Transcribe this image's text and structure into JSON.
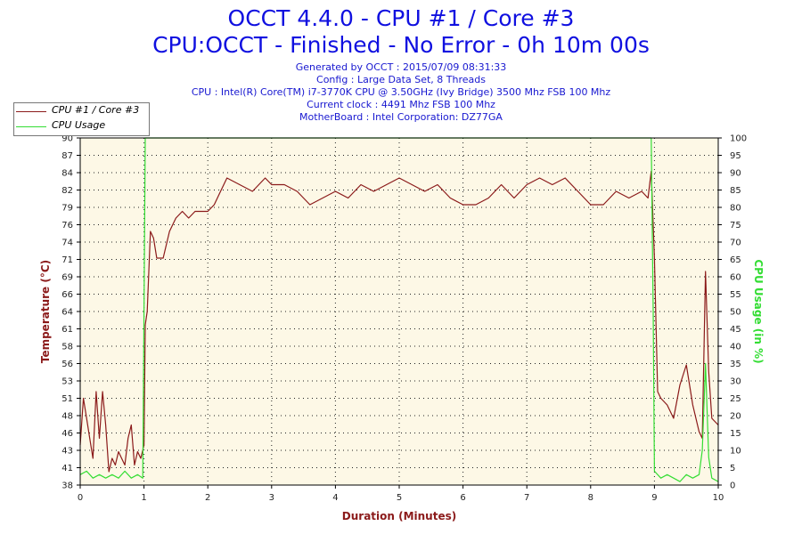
{
  "header": {
    "title_line1": "OCCT 4.4.0 - CPU #1 / Core #3",
    "title_line2": "CPU:OCCT - Finished - No Error - 0h 10m 00s",
    "info_lines": [
      "Generated by OCCT : 2015/07/09 08:31:33",
      "Config : Large Data Set, 8 Threads",
      "CPU : Intel(R) Core(TM) i7-3770K CPU @ 3.50GHz (Ivy Bridge) 3500 Mhz FSB 100 Mhz",
      "Current clock : 4491 Mhz FSB 100 Mhz",
      "MotherBoard : Intel Corporation: DZ77GA"
    ]
  },
  "colors": {
    "temperature": "#8b1a1a",
    "usage": "#33dd33",
    "title": "#1010e0",
    "plot_bg": "#fdf8e6"
  },
  "chart_data": {
    "type": "line",
    "title": "OCCT 4.4.0 - CPU #1 / Core #3",
    "xlabel": "Duration (Minutes)",
    "ylabel": "Temperature (°C)",
    "y2label": "CPU Usage (in %)",
    "xlim": [
      0,
      10
    ],
    "ylim": [
      38,
      90
    ],
    "y2lim": [
      0,
      100
    ],
    "x_ticks": [
      "0",
      "1",
      "2",
      "3",
      "4",
      "5",
      "6",
      "7",
      "8",
      "9",
      "10"
    ],
    "y_ticks": [
      "38",
      "41",
      "43",
      "46",
      "48",
      "51",
      "53",
      "56",
      "58",
      "61",
      "64",
      "66",
      "69",
      "71",
      "74",
      "76",
      "79",
      "82",
      "84",
      "87",
      "90"
    ],
    "y2_ticks": [
      "0",
      "5",
      "10",
      "15",
      "20",
      "25",
      "30",
      "35",
      "40",
      "45",
      "50",
      "55",
      "60",
      "65",
      "70",
      "75",
      "80",
      "85",
      "90",
      "95",
      "100"
    ],
    "grid": true,
    "legend": "top-left",
    "series": [
      {
        "name": "CPU #1 / Core #3",
        "axis": "left",
        "x": [
          0,
          0.05,
          0.1,
          0.15,
          0.2,
          0.25,
          0.3,
          0.35,
          0.4,
          0.45,
          0.5,
          0.55,
          0.6,
          0.65,
          0.7,
          0.75,
          0.8,
          0.85,
          0.9,
          0.95,
          1.0,
          1.02,
          1.05,
          1.1,
          1.15,
          1.2,
          1.3,
          1.4,
          1.5,
          1.6,
          1.7,
          1.8,
          1.9,
          2.0,
          2.1,
          2.2,
          2.3,
          2.5,
          2.7,
          2.9,
          3.0,
          3.2,
          3.4,
          3.6,
          3.8,
          4.0,
          4.2,
          4.4,
          4.6,
          4.8,
          5.0,
          5.2,
          5.4,
          5.6,
          5.8,
          6.0,
          6.2,
          6.4,
          6.6,
          6.8,
          7.0,
          7.2,
          7.4,
          7.6,
          7.8,
          8.0,
          8.2,
          8.4,
          8.6,
          8.8,
          8.9,
          8.95,
          9.0,
          9.05,
          9.1,
          9.2,
          9.3,
          9.4,
          9.5,
          9.6,
          9.7,
          9.75,
          9.8,
          9.85,
          9.9,
          10.0
        ],
        "values": [
          44,
          51,
          48,
          45,
          42,
          52,
          45,
          52,
          47,
          40,
          42,
          41,
          43,
          42,
          41,
          45,
          47,
          41,
          43,
          42,
          44,
          62,
          64,
          76,
          75,
          72,
          72,
          76,
          78,
          79,
          78,
          79,
          79,
          79,
          80,
          82,
          84,
          83,
          82,
          84,
          83,
          83,
          82,
          80,
          81,
          82,
          81,
          83,
          82,
          83,
          84,
          83,
          82,
          83,
          81,
          80,
          80,
          81,
          83,
          81,
          83,
          84,
          83,
          84,
          82,
          80,
          80,
          82,
          81,
          82,
          81,
          85,
          72,
          52,
          51,
          50,
          48,
          53,
          56,
          50,
          46,
          45,
          70,
          55,
          48,
          47
        ]
      },
      {
        "name": "CPU Usage",
        "axis": "right",
        "x": [
          0,
          0.1,
          0.2,
          0.3,
          0.4,
          0.5,
          0.6,
          0.7,
          0.8,
          0.9,
          0.98,
          1.0,
          1.02,
          1.5,
          2.0,
          3.0,
          4.0,
          5.0,
          6.0,
          7.0,
          8.0,
          8.95,
          8.98,
          9.0,
          9.1,
          9.2,
          9.3,
          9.4,
          9.5,
          9.6,
          9.7,
          9.75,
          9.8,
          9.85,
          9.9,
          10.0
        ],
        "values": [
          3,
          4,
          2,
          3,
          2,
          3,
          2,
          4,
          2,
          3,
          2,
          50,
          100,
          100,
          100,
          100,
          100,
          100,
          100,
          100,
          100,
          100,
          50,
          4,
          2,
          3,
          2,
          1,
          3,
          2,
          3,
          10,
          35,
          8,
          2,
          1
        ]
      }
    ]
  }
}
